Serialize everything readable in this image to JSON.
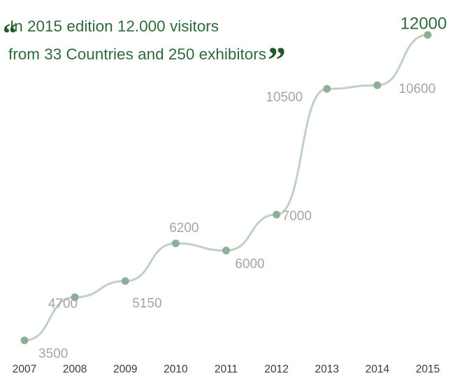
{
  "quote": {
    "open_mark": "“",
    "line1": "In 2015 edition 12.000 visitors",
    "line2": "from 33 Countries and 250 exhibitors",
    "close_mark": "”"
  },
  "colors": {
    "line": "#bfd1c4",
    "point": "#8fae98",
    "value_label": "#a5a5a5",
    "highlight_label": "#2f6a3a",
    "year_label": "#3a3a3a",
    "quote_text": "#2f6a3a"
  },
  "chart_data": {
    "type": "line",
    "categories": [
      "2007",
      "2008",
      "2009",
      "2010",
      "2011",
      "2012",
      "2013",
      "2014",
      "2015"
    ],
    "values": [
      3500,
      4700,
      5150,
      6200,
      6000,
      7000,
      10500,
      10600,
      12000
    ],
    "data_labels": [
      "3500",
      "4700",
      "5150",
      "6200",
      "6000",
      "7000",
      "10500",
      "10600",
      "12000"
    ],
    "ylim": [
      3000,
      12500
    ],
    "grid": false,
    "title": "",
    "xlabel": "",
    "ylabel": ""
  }
}
